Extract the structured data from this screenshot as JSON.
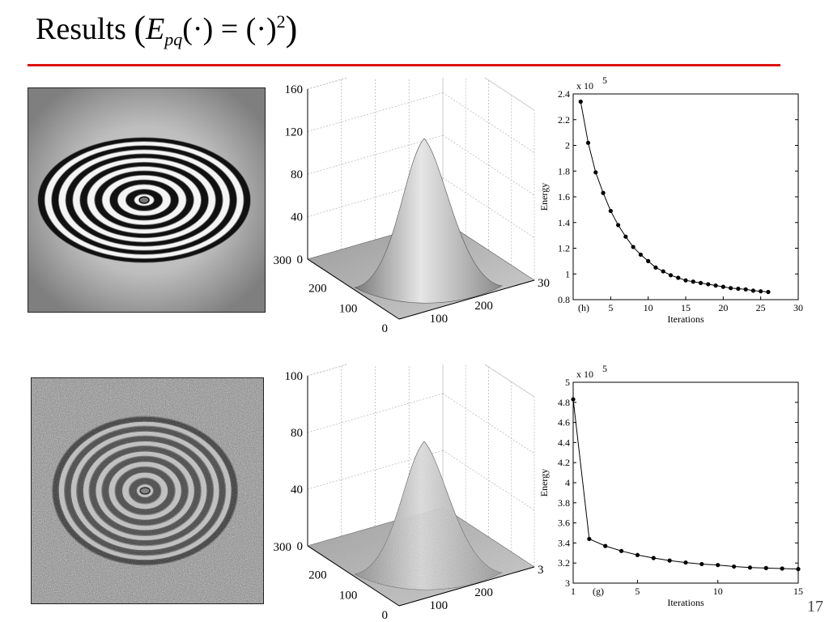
{
  "slide": {
    "title_word": "Results",
    "title_formula": {
      "E": "E",
      "sub": "pq",
      "arg": "(·) = (·)",
      "sup": "2"
    },
    "page_number": "17"
  },
  "colors": {
    "rule": "#dd1111"
  },
  "rows": [
    {
      "image": {
        "name": "wrapped-phase-image",
        "noisy": false
      },
      "surface": {
        "z_ticks": [
          "160",
          "120",
          "80",
          "40",
          "0"
        ],
        "left_ticks": [
          "300",
          "200",
          "100",
          "0"
        ],
        "right_ticks": [
          "100",
          "200",
          "30"
        ],
        "noisy": false
      }
    },
    {
      "image": {
        "name": "noisy-wrapped-phase-image",
        "noisy": true
      },
      "surface": {
        "z_ticks": [
          "100",
          "80",
          "40",
          "0"
        ],
        "left_ticks": [
          "300",
          "200",
          "100",
          "0"
        ],
        "right_ticks": [
          "100",
          "200",
          "3"
        ],
        "noisy": true
      }
    }
  ],
  "chart_data": [
    {
      "type": "line",
      "panel_label": "(h)",
      "xlabel": "Iterations",
      "ylabel": "Energy",
      "y_multiplier": "x 10",
      "y_multiplier_exp": "5",
      "xlim": [
        0,
        30
      ],
      "ylim": [
        0.8,
        2.4
      ],
      "x_ticks": [
        "5",
        "10",
        "15",
        "20",
        "25",
        "30"
      ],
      "y_ticks": [
        "0.8",
        "1",
        "1.2",
        "1.4",
        "1.6",
        "1.8",
        "2",
        "2.2",
        "2.4"
      ],
      "x": [
        1,
        2,
        3,
        4,
        5,
        6,
        7,
        8,
        9,
        10,
        11,
        12,
        13,
        14,
        15,
        16,
        17,
        18,
        19,
        20,
        21,
        22,
        23,
        24,
        25,
        26
      ],
      "y": [
        2.34,
        2.02,
        1.79,
        1.63,
        1.49,
        1.38,
        1.29,
        1.21,
        1.15,
        1.1,
        1.05,
        1.02,
        0.99,
        0.97,
        0.95,
        0.94,
        0.93,
        0.92,
        0.91,
        0.9,
        0.89,
        0.885,
        0.88,
        0.87,
        0.865,
        0.86
      ]
    },
    {
      "type": "line",
      "panel_label": "(g)",
      "xlabel": "Iterations",
      "ylabel": "Energy",
      "y_multiplier": "x 10",
      "y_multiplier_exp": "5",
      "xlim": [
        1,
        15
      ],
      "ylim": [
        3,
        5
      ],
      "x_ticks": [
        "1",
        "5",
        "10",
        "15"
      ],
      "y_ticks": [
        "3",
        "3.2",
        "3.4",
        "3.6",
        "3.8",
        "4",
        "4.2",
        "4.4",
        "4.6",
        "4.8",
        "5"
      ],
      "x": [
        1,
        2,
        3,
        4,
        5,
        6,
        7,
        8,
        9,
        10,
        11,
        12,
        13,
        14,
        15
      ],
      "y": [
        4.83,
        3.44,
        3.37,
        3.32,
        3.28,
        3.25,
        3.225,
        3.205,
        3.19,
        3.18,
        3.165,
        3.155,
        3.15,
        3.145,
        3.14
      ]
    }
  ]
}
